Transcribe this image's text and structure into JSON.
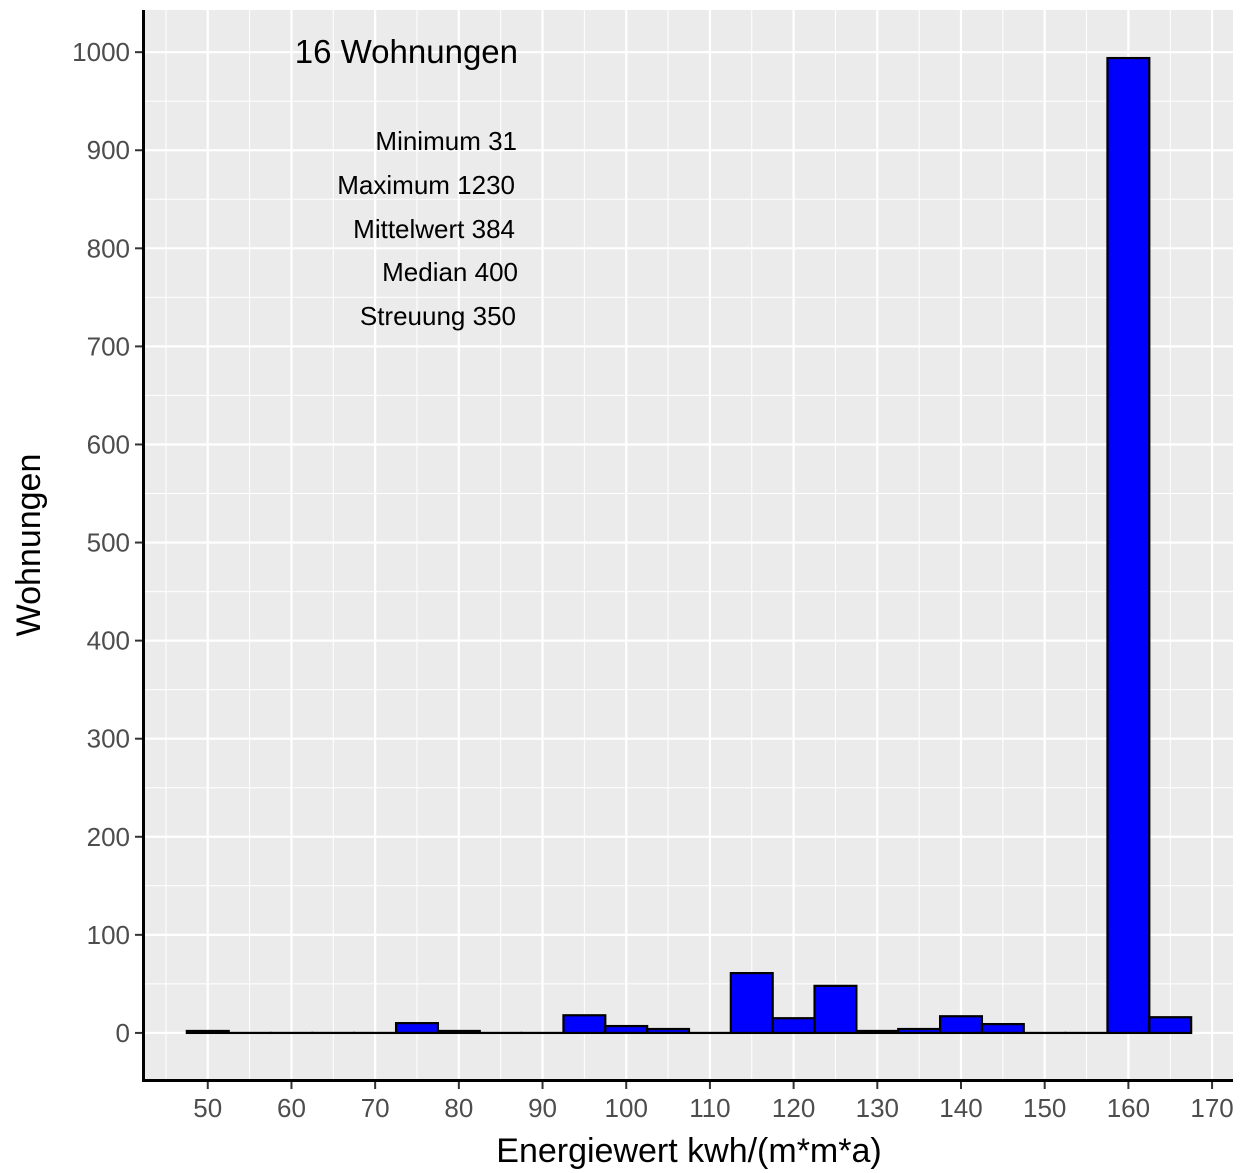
{
  "chart_data": {
    "type": "bar",
    "title": "",
    "xlabel": "Energiewert kwh/(m*m*a)",
    "ylabel": "Wohnungen",
    "xlim": [
      42.5,
      172.5
    ],
    "ylim": [
      -48,
      1043
    ],
    "x_ticks": [
      "50",
      "60",
      "70",
      "80",
      "90",
      "100",
      "110",
      "120",
      "130",
      "140",
      "150",
      "160",
      "170"
    ],
    "y_ticks": [
      "0",
      "100",
      "200",
      "300",
      "400",
      "500",
      "600",
      "700",
      "800",
      "900",
      "1000"
    ],
    "bin_width": 5,
    "bin_centers": [
      50,
      55,
      60,
      65,
      70,
      75,
      80,
      85,
      90,
      95,
      100,
      105,
      110,
      115,
      120,
      125,
      130,
      135,
      140,
      145,
      150,
      155,
      160,
      165
    ],
    "values": [
      2,
      0,
      0,
      0,
      0,
      10,
      2,
      0,
      0,
      18,
      7,
      4,
      0,
      61,
      15,
      48,
      2,
      4,
      17,
      9,
      0,
      0,
      994,
      16
    ],
    "bar_color": "#0000ff",
    "bar_outline": "#000000",
    "panel_background": "#ebebeb",
    "grid": true,
    "annotations": {
      "count_label": "16 Wohnungen",
      "stats": [
        "Minimum 31",
        "Maximum 1230",
        "Mittelwert 384",
        "Median 400",
        "Streuung 350"
      ]
    }
  }
}
